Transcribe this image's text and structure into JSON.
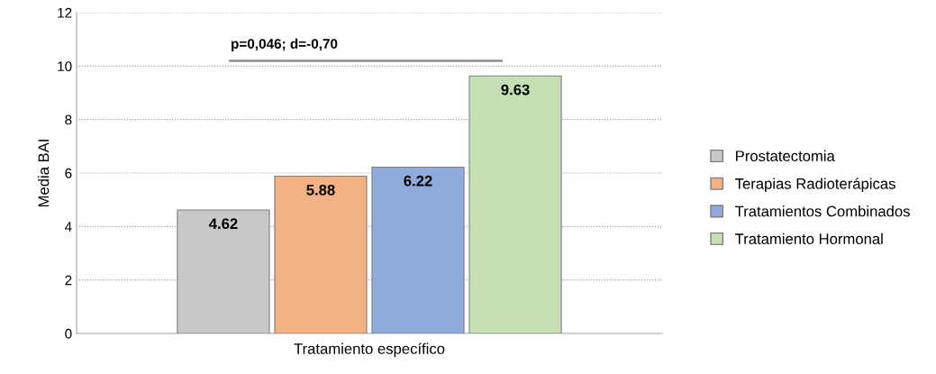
{
  "chart_data": {
    "type": "bar",
    "categories": [
      null
    ],
    "xlabel": "Tratamiento específico",
    "ylabel": "Media BAI",
    "series": [
      {
        "name": "Prostatectomia",
        "color": "#c9c9c9",
        "values": [
          4.62
        ]
      },
      {
        "name": "Terapias Radioterápicas",
        "color": "#f4b183",
        "values": [
          5.88
        ]
      },
      {
        "name": "Tratamientos Combinados",
        "color": "#8faadc",
        "values": [
          6.22
        ]
      },
      {
        "name": "Tratamiento Hormonal",
        "color": "#c5e0b4",
        "values": [
          9.63
        ]
      }
    ],
    "ylim": [
      0,
      12
    ],
    "yticks": [
      0,
      2,
      4,
      6,
      8,
      10,
      12
    ],
    "grid": "y",
    "legend": "right",
    "data_labels": true,
    "annotations": [
      "p=0,046; d=-0,70"
    ]
  }
}
